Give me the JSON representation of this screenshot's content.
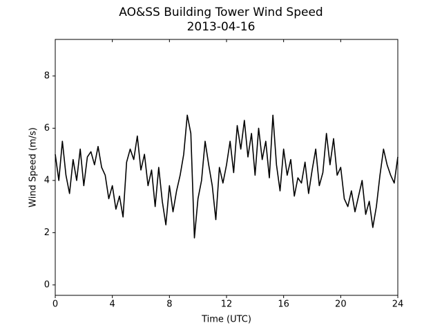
{
  "chart_data": {
    "type": "line",
    "title": "AO&SS Building Tower Wind Speed",
    "subtitle": "2013-04-16",
    "x_label": "Time (UTC)",
    "y_label": "Wind Speed (m/s)",
    "xlim": [
      0,
      24
    ],
    "xticks": [
      0,
      4,
      8,
      12,
      16,
      20,
      24
    ],
    "ylim": [
      -0.4,
      9.4
    ],
    "yticks": [
      0,
      2,
      4,
      6,
      8
    ],
    "grid": false,
    "series": [
      {
        "name": "Wind Speed",
        "color": "#000000",
        "x": [
          0,
          0.25,
          0.5,
          0.75,
          1,
          1.25,
          1.5,
          1.75,
          2,
          2.25,
          2.5,
          2.75,
          3,
          3.25,
          3.5,
          3.75,
          4,
          4.25,
          4.5,
          4.75,
          5,
          5.25,
          5.5,
          5.75,
          6,
          6.25,
          6.5,
          6.75,
          7,
          7.25,
          7.5,
          7.75,
          8,
          8.25,
          8.5,
          8.75,
          9,
          9.25,
          9.5,
          9.75,
          10,
          10.25,
          10.5,
          10.75,
          11,
          11.25,
          11.5,
          11.75,
          12,
          12.25,
          12.5,
          12.75,
          13,
          13.25,
          13.5,
          13.75,
          14,
          14.25,
          14.5,
          14.75,
          15,
          15.25,
          15.5,
          15.75,
          16,
          16.25,
          16.5,
          16.75,
          17,
          17.25,
          17.5,
          17.75,
          18,
          18.25,
          18.5,
          18.75,
          19,
          19.25,
          19.5,
          19.75,
          20,
          20.25,
          20.5,
          20.75,
          21,
          21.25,
          21.5,
          21.75,
          22,
          22.25,
          22.5,
          22.75,
          23,
          23.25,
          23.5,
          23.75,
          24
        ],
        "values": [
          5.0,
          4.0,
          5.5,
          4.2,
          3.5,
          4.8,
          4.0,
          5.2,
          3.8,
          4.9,
          5.1,
          4.6,
          5.3,
          4.5,
          4.2,
          3.3,
          3.8,
          2.9,
          3.4,
          2.6,
          4.7,
          5.2,
          4.8,
          5.7,
          4.4,
          5.0,
          3.8,
          4.4,
          3.0,
          4.5,
          3.2,
          2.3,
          3.8,
          2.8,
          3.6,
          4.2,
          5.0,
          6.5,
          5.8,
          1.8,
          3.3,
          4.0,
          5.5,
          4.6,
          3.8,
          2.5,
          4.5,
          3.9,
          4.6,
          5.5,
          4.3,
          6.1,
          5.2,
          6.3,
          4.9,
          5.8,
          4.2,
          6.0,
          4.8,
          5.5,
          4.1,
          6.5,
          4.6,
          3.6,
          5.2,
          4.2,
          4.8,
          3.4,
          4.1,
          3.9,
          4.7,
          3.5,
          4.4,
          5.2,
          3.8,
          4.3,
          5.8,
          4.6,
          5.6,
          4.2,
          4.5,
          3.3,
          3.0,
          3.6,
          2.8,
          3.4,
          4.0,
          2.7,
          3.2,
          2.2,
          3.0,
          4.2,
          5.2,
          4.6,
          4.2,
          3.9,
          4.9
        ]
      }
    ]
  }
}
